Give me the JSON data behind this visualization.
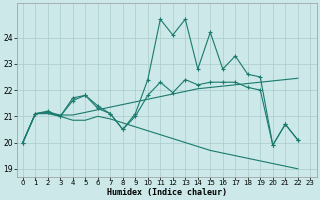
{
  "xlabel": "Humidex (Indice chaleur)",
  "background_color": "#cce8e8",
  "grid_color": "#aacccc",
  "line_color": "#1a7a6e",
  "xlim": [
    -0.5,
    23.5
  ],
  "ylim": [
    18.7,
    25.3
  ],
  "yticks": [
    19,
    20,
    21,
    22,
    23,
    24
  ],
  "xticks": [
    0,
    1,
    2,
    3,
    4,
    5,
    6,
    7,
    8,
    9,
    10,
    11,
    12,
    13,
    14,
    15,
    16,
    17,
    18,
    19,
    20,
    21,
    22,
    23
  ],
  "line1_x": [
    0,
    1,
    2,
    3,
    4,
    5,
    6,
    7,
    8,
    9,
    10,
    11,
    12,
    13,
    14,
    15,
    16,
    17,
    18,
    19,
    20,
    21,
    22
  ],
  "line1_y": [
    20.0,
    21.1,
    21.2,
    21.0,
    21.7,
    21.8,
    21.4,
    21.1,
    20.5,
    21.1,
    22.4,
    24.7,
    24.1,
    24.7,
    22.8,
    24.2,
    22.8,
    23.3,
    22.6,
    22.5,
    19.9,
    20.7,
    20.1
  ],
  "line2_x": [
    0,
    1,
    2,
    3,
    4,
    5,
    6,
    7,
    8,
    9,
    10,
    11,
    12,
    13,
    14,
    15,
    16,
    17,
    18,
    19,
    20,
    21,
    22
  ],
  "line2_y": [
    20.0,
    21.1,
    21.15,
    21.05,
    21.05,
    21.15,
    21.25,
    21.35,
    21.45,
    21.55,
    21.65,
    21.75,
    21.85,
    21.95,
    22.05,
    22.1,
    22.15,
    22.2,
    22.25,
    22.3,
    22.35,
    22.4,
    22.45
  ],
  "line3_x": [
    0,
    1,
    2,
    3,
    4,
    5,
    6,
    7,
    8,
    9,
    10,
    11,
    12,
    13,
    14,
    15,
    16,
    17,
    18,
    19,
    20,
    21,
    22
  ],
  "line3_y": [
    20.0,
    21.1,
    21.1,
    21.0,
    20.85,
    20.85,
    21.0,
    20.9,
    20.75,
    20.6,
    20.45,
    20.3,
    20.15,
    20.0,
    19.85,
    19.7,
    19.6,
    19.5,
    19.4,
    19.3,
    19.2,
    19.1,
    19.0
  ],
  "line4_x": [
    0,
    1,
    2,
    3,
    4,
    5,
    6,
    7,
    8,
    9,
    10,
    11,
    12,
    13,
    14,
    15,
    16,
    17,
    18,
    19,
    20,
    21,
    22
  ],
  "line4_y": [
    20.0,
    21.1,
    21.15,
    21.0,
    21.6,
    21.8,
    21.3,
    21.1,
    20.5,
    21.0,
    21.8,
    22.3,
    21.9,
    22.4,
    22.2,
    22.3,
    22.3,
    22.3,
    22.1,
    22.0,
    19.9,
    20.7,
    20.1
  ]
}
